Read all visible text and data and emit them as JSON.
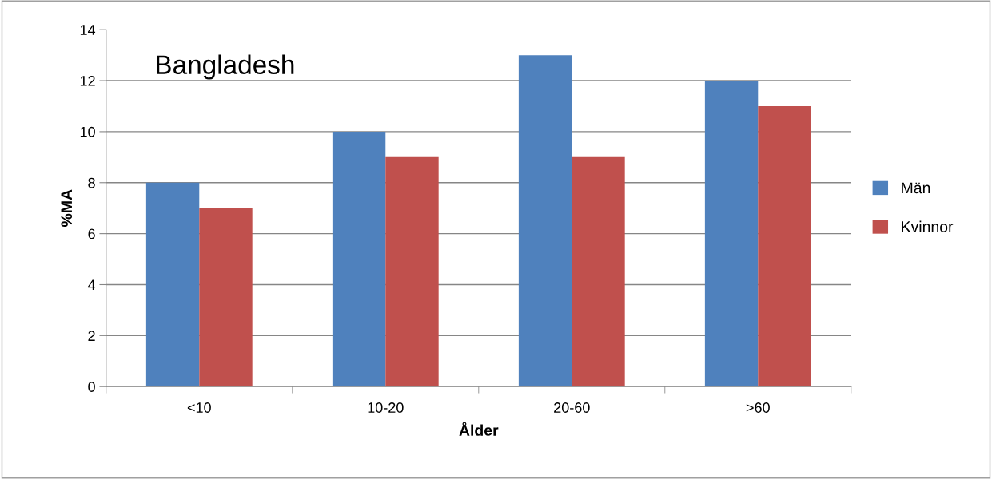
{
  "chart_data": {
    "type": "bar",
    "title": "Bangladesh",
    "xlabel": "Ålder",
    "ylabel": "%MA",
    "categories": [
      "<10",
      "10-20",
      "20-60",
      ">60"
    ],
    "series": [
      {
        "name": "Män",
        "color": "#4f81bd",
        "values": [
          8,
          10,
          13,
          12
        ]
      },
      {
        "name": "Kvinnor",
        "color": "#c0504d",
        "values": [
          7,
          9,
          9,
          11
        ]
      }
    ],
    "ylim": [
      0,
      14
    ],
    "yticks": [
      0,
      2,
      4,
      6,
      8,
      10,
      12,
      14
    ],
    "grid": "y",
    "legend": "right"
  }
}
